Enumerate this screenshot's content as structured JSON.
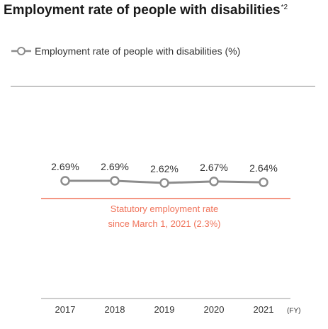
{
  "title": "Employment rate of people with disabilities",
  "title_superscript": "*2",
  "legend_label": "Employment rate of people with disabilities (%)",
  "x_unit": "(FY)",
  "reference_line": {
    "label_line1": "Statutory employment rate",
    "label_line2": "since March 1, 2021 (2.3%)",
    "value": 2.3,
    "color": "#f0735a"
  },
  "colors": {
    "line": "#8c8c8c",
    "marker_fill": "#ffffff",
    "marker_stroke": "#8c8c8c",
    "label_text": "#333333",
    "axis": "#9a9a9a"
  },
  "chart_data": {
    "type": "line",
    "categories": [
      "2017",
      "2018",
      "2019",
      "2020",
      "2021"
    ],
    "series": [
      {
        "name": "Employment rate of people with disabilities (%)",
        "values": [
          2.69,
          2.69,
          2.62,
          2.67,
          2.64
        ],
        "labels": [
          "2.69%",
          "2.69%",
          "2.62%",
          "2.67%",
          "2.64%"
        ]
      }
    ],
    "title": "Employment rate of people with disabilities",
    "xlabel": "(FY)",
    "ylabel": "",
    "grid": false,
    "legend_position": "top-left"
  }
}
